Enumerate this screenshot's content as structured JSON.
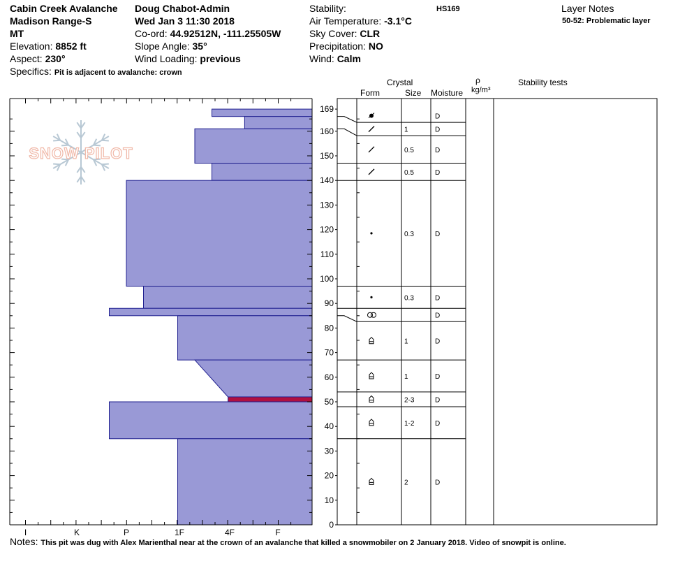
{
  "header": {
    "location": "Cabin Creek Avalanche",
    "range": "Madison Range-S",
    "state": "MT",
    "elevation_label": "Elevation: ",
    "elevation": "8852 ft",
    "aspect_label": "Aspect: ",
    "aspect": "230°",
    "specifics_label": "Specifics: ",
    "specifics": "Pit is adjacent to avalanche: crown",
    "observer": "Doug Chabot-Admin",
    "datetime": "Wed Jan 3 11:30 2018",
    "coord_label": "Co-ord: ",
    "coord": "44.92512N, -111.25505W",
    "slope_label": "Slope Angle: ",
    "slope": "35°",
    "wind_loading_label": "Wind Loading: ",
    "wind_loading": "previous",
    "stability_label": "Stability:",
    "air_temp_label": "Air Temperature: ",
    "air_temp": "-3.1°C",
    "sky_label": "Sky Cover: ",
    "sky": "CLR",
    "precip_label": "Precipitation: ",
    "precip": "NO",
    "wind_label": "Wind: ",
    "wind": "Calm",
    "hs": "HS169",
    "layer_notes_title": "Layer Notes",
    "layer_note": "50-52: Problematic layer"
  },
  "watermark": "SNOW PILOT",
  "columns": {
    "crystal": "Crystal",
    "form": "Form",
    "size": "Size",
    "moisture": "Moisture",
    "rho": "ρ",
    "density_unit": "kg/m³",
    "stability_tests": "Stability tests"
  },
  "notes_label": "Notes: ",
  "notes": "This pit was dug with Alex Marienthal near at the crown of an avalanche that killed a snowmobiler on 2 January 2018. Video of snowpit is online.",
  "colors": {
    "hardness_fill": "#9999d6",
    "hardness_stroke": "#1f1f8f",
    "problem_layer": "#b01040"
  },
  "chart_data": {
    "type": "snow-profile",
    "y_axis": {
      "label": "",
      "min": 0,
      "max": 169,
      "ticks": [
        0,
        10,
        20,
        30,
        40,
        50,
        60,
        70,
        80,
        90,
        100,
        110,
        120,
        130,
        140,
        150,
        160,
        169
      ]
    },
    "x_axis": {
      "ticks": [
        "I",
        "K",
        "P",
        "1F",
        "4F",
        "F"
      ],
      "reversed": true
    },
    "hardness_profile": [
      {
        "bottom": 166,
        "top": 169,
        "hardness": 2.05
      },
      {
        "bottom": 161,
        "top": 166,
        "hardness": 1.38
      },
      {
        "bottom": 147,
        "top": 161,
        "hardness": 2.4
      },
      {
        "bottom": 140,
        "top": 147,
        "hardness": 2.05
      },
      {
        "bottom": 97,
        "top": 140,
        "hardness": 3.8
      },
      {
        "bottom": 88,
        "top": 97,
        "hardness": 3.45
      },
      {
        "bottom": 85,
        "top": 88,
        "hardness": 4.15
      },
      {
        "bottom": 67,
        "top": 85,
        "hardness": 2.75
      },
      {
        "bottom": 52,
        "top": 67,
        "hardness_bottom": 1.72,
        "hardness_top": 2.4
      },
      {
        "bottom": 50,
        "top": 52,
        "hardness": 1.72,
        "problem": true
      },
      {
        "bottom": 35,
        "top": 50,
        "hardness": 4.15
      },
      {
        "bottom": 0,
        "top": 35,
        "hardness": 2.75
      }
    ],
    "layers": [
      {
        "bottom": 166,
        "top": 169,
        "form": "graupel",
        "size": "",
        "moisture": "D"
      },
      {
        "bottom": 161,
        "top": 166,
        "form": "dfg",
        "size": "1",
        "moisture": "D"
      },
      {
        "bottom": 147,
        "top": 161,
        "form": "dfg",
        "size": "0.5",
        "moisture": "D"
      },
      {
        "bottom": 140,
        "top": 147,
        "form": "dfg",
        "size": "0.5",
        "moisture": "D"
      },
      {
        "bottom": 97,
        "top": 140,
        "form": "rounded",
        "size": "0.3",
        "moisture": "D"
      },
      {
        "bottom": 88,
        "top": 97,
        "form": "rounded",
        "size": "0.3",
        "moisture": "D"
      },
      {
        "bottom": 85,
        "top": 88,
        "form": "melt-freeze",
        "size": "",
        "moisture": "D"
      },
      {
        "bottom": 67,
        "top": 85,
        "form": "depth-hoar",
        "size": "1",
        "moisture": "D"
      },
      {
        "bottom": 54,
        "top": 67,
        "form": "depth-hoar",
        "size": "1",
        "moisture": "D"
      },
      {
        "bottom": 48,
        "top": 54,
        "form": "depth-hoar",
        "size": "2-3",
        "moisture": "D"
      },
      {
        "bottom": 35,
        "top": 48,
        "form": "depth-hoar",
        "size": "1-2",
        "moisture": "D"
      },
      {
        "bottom": 0,
        "top": 35,
        "form": "depth-hoar",
        "size": "2",
        "moisture": "D"
      }
    ]
  }
}
